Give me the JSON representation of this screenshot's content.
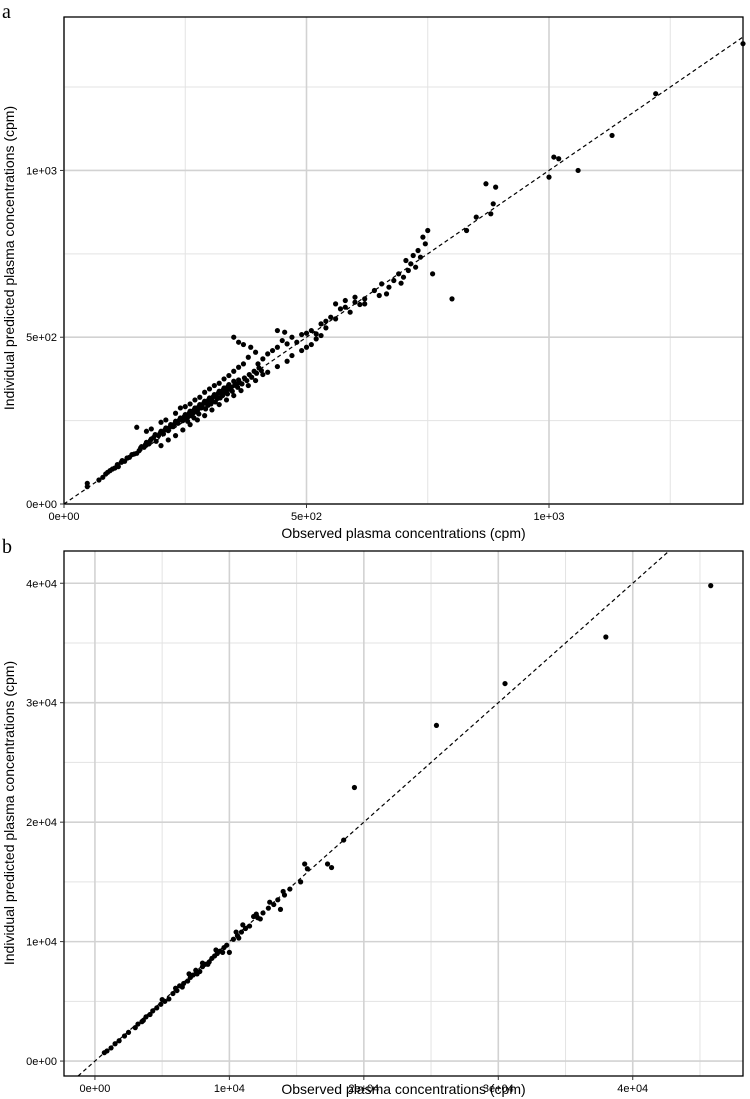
{
  "chart_data": [
    {
      "panel": "a",
      "type": "scatter",
      "title": "",
      "xlabel": "Observed plasma concentrations (cpm)",
      "ylabel": "Individual predicted plasma concentrations (cpm)",
      "xlim": [
        0,
        1400
      ],
      "ylim": [
        0,
        1460
      ],
      "xticks": [
        {
          "value": 0,
          "label": "0e+00"
        },
        {
          "value": 500,
          "label": "5e+02"
        },
        {
          "value": 1000,
          "label": "1e+03"
        }
      ],
      "yticks": [
        {
          "value": 0,
          "label": "0e+00"
        },
        {
          "value": 500,
          "label": "5e+02"
        },
        {
          "value": 1000,
          "label": "1e+03"
        }
      ],
      "minor_x": [
        250,
        750,
        1250
      ],
      "minor_y": [
        250,
        750,
        1250
      ],
      "grid": true,
      "identity_line": true,
      "points": [
        [
          48,
          52
        ],
        [
          48,
          62
        ],
        [
          72,
          72
        ],
        [
          80,
          80
        ],
        [
          86,
          90
        ],
        [
          90,
          95
        ],
        [
          95,
          100
        ],
        [
          100,
          105
        ],
        [
          105,
          108
        ],
        [
          110,
          118
        ],
        [
          112,
          112
        ],
        [
          118,
          125
        ],
        [
          120,
          130
        ],
        [
          125,
          128
        ],
        [
          130,
          138
        ],
        [
          135,
          140
        ],
        [
          140,
          148
        ],
        [
          145,
          150
        ],
        [
          150,
          152
        ],
        [
          155,
          160
        ],
        [
          158,
          168
        ],
        [
          160,
          172
        ],
        [
          165,
          170
        ],
        [
          168,
          178
        ],
        [
          170,
          185
        ],
        [
          175,
          180
        ],
        [
          178,
          190
        ],
        [
          180,
          195
        ],
        [
          185,
          200
        ],
        [
          188,
          208
        ],
        [
          190,
          188
        ],
        [
          195,
          205
        ],
        [
          198,
          212
        ],
        [
          200,
          218
        ],
        [
          205,
          210
        ],
        [
          208,
          222
        ],
        [
          210,
          228
        ],
        [
          215,
          220
        ],
        [
          218,
          230
        ],
        [
          220,
          238
        ],
        [
          225,
          232
        ],
        [
          228,
          240
        ],
        [
          230,
          248
        ],
        [
          235,
          242
        ],
        [
          238,
          252
        ],
        [
          240,
          258
        ],
        [
          245,
          250
        ],
        [
          248,
          262
        ],
        [
          250,
          268
        ],
        [
          255,
          260
        ],
        [
          258,
          272
        ],
        [
          260,
          278
        ],
        [
          265,
          270
        ],
        [
          268,
          282
        ],
        [
          270,
          288
        ],
        [
          275,
          280
        ],
        [
          278,
          292
        ],
        [
          280,
          298
        ],
        [
          285,
          290
        ],
        [
          288,
          302
        ],
        [
          290,
          308
        ],
        [
          295,
          300
        ],
        [
          298,
          312
        ],
        [
          300,
          318
        ],
        [
          305,
          310
        ],
        [
          308,
          322
        ],
        [
          310,
          328
        ],
        [
          315,
          320
        ],
        [
          318,
          332
        ],
        [
          320,
          338
        ],
        [
          325,
          330
        ],
        [
          328,
          342
        ],
        [
          330,
          348
        ],
        [
          335,
          340
        ],
        [
          338,
          352
        ],
        [
          340,
          358
        ],
        [
          345,
          350
        ],
        [
          350,
          368
        ],
        [
          355,
          360
        ],
        [
          360,
          372
        ],
        [
          150,
          230
        ],
        [
          170,
          218
        ],
        [
          180,
          225
        ],
        [
          200,
          245
        ],
        [
          210,
          252
        ],
        [
          230,
          272
        ],
        [
          240,
          288
        ],
        [
          250,
          292
        ],
        [
          260,
          300
        ],
        [
          270,
          312
        ],
        [
          280,
          320
        ],
        [
          290,
          335
        ],
        [
          300,
          345
        ],
        [
          310,
          355
        ],
        [
          320,
          362
        ],
        [
          330,
          375
        ],
        [
          340,
          385
        ],
        [
          350,
          398
        ],
        [
          360,
          410
        ],
        [
          370,
          420
        ],
        [
          200,
          175
        ],
        [
          215,
          192
        ],
        [
          230,
          205
        ],
        [
          245,
          222
        ],
        [
          260,
          238
        ],
        [
          275,
          252
        ],
        [
          290,
          265
        ],
        [
          305,
          282
        ],
        [
          320,
          298
        ],
        [
          335,
          312
        ],
        [
          350,
          325
        ],
        [
          365,
          340
        ],
        [
          380,
          355
        ],
        [
          395,
          370
        ],
        [
          410,
          388
        ],
        [
          380,
          440
        ],
        [
          395,
          455
        ],
        [
          400,
          420
        ],
        [
          410,
          435
        ],
        [
          420,
          450
        ],
        [
          430,
          460
        ],
        [
          440,
          470
        ],
        [
          450,
          490
        ],
        [
          460,
          480
        ],
        [
          470,
          500
        ],
        [
          480,
          485
        ],
        [
          490,
          508
        ],
        [
          500,
          512
        ],
        [
          510,
          520
        ],
        [
          520,
          510
        ],
        [
          530,
          540
        ],
        [
          540,
          548
        ],
        [
          550,
          560
        ],
        [
          560,
          555
        ],
        [
          570,
          585
        ],
        [
          580,
          590
        ],
        [
          590,
          575
        ],
        [
          600,
          605
        ],
        [
          610,
          598
        ],
        [
          620,
          615
        ],
        [
          420,
          395
        ],
        [
          440,
          412
        ],
        [
          460,
          428
        ],
        [
          470,
          445
        ],
        [
          490,
          460
        ],
        [
          500,
          470
        ],
        [
          510,
          478
        ],
        [
          520,
          495
        ],
        [
          530,
          505
        ],
        [
          540,
          528
        ],
        [
          350,
          500
        ],
        [
          360,
          485
        ],
        [
          370,
          478
        ],
        [
          385,
          470
        ],
        [
          440,
          520
        ],
        [
          455,
          515
        ],
        [
          560,
          600
        ],
        [
          580,
          610
        ],
        [
          600,
          620
        ],
        [
          620,
          600
        ],
        [
          640,
          640
        ],
        [
          650,
          625
        ],
        [
          655,
          660
        ],
        [
          665,
          630
        ],
        [
          670,
          650
        ],
        [
          680,
          670
        ],
        [
          690,
          690
        ],
        [
          695,
          662
        ],
        [
          700,
          680
        ],
        [
          705,
          730
        ],
        [
          710,
          700
        ],
        [
          715,
          720
        ],
        [
          720,
          745
        ],
        [
          725,
          710
        ],
        [
          730,
          760
        ],
        [
          735,
          740
        ],
        [
          740,
          800
        ],
        [
          745,
          780
        ],
        [
          750,
          820
        ],
        [
          760,
          690
        ],
        [
          800,
          615
        ],
        [
          830,
          820
        ],
        [
          850,
          860
        ],
        [
          870,
          960
        ],
        [
          880,
          870
        ],
        [
          885,
          900
        ],
        [
          890,
          950
        ],
        [
          1000,
          980
        ],
        [
          1010,
          1040
        ],
        [
          1020,
          1035
        ],
        [
          1060,
          1000
        ],
        [
          1130,
          1105
        ],
        [
          1220,
          1230
        ],
        [
          1400,
          1380
        ],
        [
          250,
          255
        ],
        [
          255,
          248
        ],
        [
          262,
          265
        ],
        [
          268,
          258
        ],
        [
          272,
          276
        ],
        [
          278,
          270
        ],
        [
          283,
          288
        ],
        [
          292,
          285
        ],
        [
          297,
          296
        ],
        [
          303,
          300
        ],
        [
          312,
          306
        ],
        [
          316,
          316
        ],
        [
          322,
          318
        ],
        [
          327,
          325
        ],
        [
          332,
          336
        ],
        [
          337,
          330
        ],
        [
          342,
          344
        ],
        [
          347,
          338
        ],
        [
          352,
          356
        ],
        [
          358,
          350
        ],
        [
          362,
          364
        ],
        [
          367,
          360
        ],
        [
          372,
          378
        ],
        [
          377,
          370
        ],
        [
          382,
          388
        ],
        [
          387,
          380
        ],
        [
          392,
          398
        ],
        [
          397,
          392
        ],
        [
          402,
          408
        ],
        [
          407,
          400
        ]
      ]
    },
    {
      "panel": "b",
      "type": "scatter",
      "title": "",
      "xlabel": "Observed plasma concentrations (cpm)",
      "ylabel": "Individual predicted plasma concentrations (cpm)",
      "xlim": [
        -2300,
        48200
      ],
      "ylim": [
        -1250,
        42700
      ],
      "xticks": [
        {
          "value": 0,
          "label": "0e+00"
        },
        {
          "value": 10000,
          "label": "1e+04"
        },
        {
          "value": 20000,
          "label": "2e+04"
        },
        {
          "value": 30000,
          "label": "3e+04"
        },
        {
          "value": 40000,
          "label": "4e+04"
        }
      ],
      "yticks": [
        {
          "value": 0,
          "label": "0e+00"
        },
        {
          "value": 10000,
          "label": "1e+04"
        },
        {
          "value": 20000,
          "label": "2e+04"
        },
        {
          "value": 30000,
          "label": "3e+04"
        },
        {
          "value": 40000,
          "label": "4e+04"
        }
      ],
      "minor_x": [
        5000,
        15000,
        25000,
        35000,
        45000
      ],
      "minor_y": [
        5000,
        15000,
        25000,
        35000
      ],
      "grid": true,
      "identity_line": true,
      "points": [
        [
          700,
          700
        ],
        [
          900,
          850
        ],
        [
          1200,
          1100
        ],
        [
          1500,
          1450
        ],
        [
          1800,
          1700
        ],
        [
          2200,
          2100
        ],
        [
          3000,
          2800
        ],
        [
          3200,
          3100
        ],
        [
          3500,
          3300
        ],
        [
          3800,
          3700
        ],
        [
          4100,
          3900
        ],
        [
          4300,
          4200
        ],
        [
          4600,
          4450
        ],
        [
          4900,
          4750
        ],
        [
          5200,
          5000
        ],
        [
          5500,
          5200
        ],
        [
          5800,
          5650
        ],
        [
          6100,
          5900
        ],
        [
          6300,
          6300
        ],
        [
          6600,
          6500
        ],
        [
          6900,
          6700
        ],
        [
          7100,
          7000
        ],
        [
          7300,
          7200
        ],
        [
          7500,
          7600
        ],
        [
          7800,
          7500
        ],
        [
          8000,
          7900
        ],
        [
          8200,
          8100
        ],
        [
          8500,
          8300
        ],
        [
          8700,
          8600
        ],
        [
          8900,
          8800
        ],
        [
          9100,
          9000
        ],
        [
          9300,
          9200
        ],
        [
          9600,
          9500
        ],
        [
          9800,
          9700
        ],
        [
          10000,
          9100
        ],
        [
          10300,
          10200
        ],
        [
          10600,
          10500
        ],
        [
          10900,
          10800
        ],
        [
          11200,
          11100
        ],
        [
          11500,
          11300
        ],
        [
          11800,
          12100
        ],
        [
          12100,
          12000
        ],
        [
          12500,
          12400
        ],
        [
          12900,
          12800
        ],
        [
          13300,
          13100
        ],
        [
          13600,
          13500
        ],
        [
          13800,
          12700
        ],
        [
          14100,
          13900
        ],
        [
          14500,
          14400
        ],
        [
          15300,
          15000
        ],
        [
          15600,
          16500
        ],
        [
          15800,
          16100
        ],
        [
          17300,
          16500
        ],
        [
          17600,
          16200
        ],
        [
          18500,
          18500
        ],
        [
          19300,
          22900
        ],
        [
          25400,
          28100
        ],
        [
          30500,
          31600
        ],
        [
          38000,
          35500
        ],
        [
          45800,
          39800
        ],
        [
          5000,
          5150
        ],
        [
          6000,
          6100
        ],
        [
          7000,
          7300
        ],
        [
          8000,
          8200
        ],
        [
          9000,
          9300
        ],
        [
          10500,
          10800
        ],
        [
          11000,
          11400
        ],
        [
          12000,
          12300
        ],
        [
          13000,
          13300
        ],
        [
          14000,
          14200
        ],
        [
          3600,
          3400
        ],
        [
          2500,
          2400
        ],
        [
          6500,
          6200
        ],
        [
          7600,
          7300
        ],
        [
          8400,
          8100
        ],
        [
          9500,
          9100
        ],
        [
          10700,
          10300
        ],
        [
          12300,
          11900
        ]
      ]
    }
  ]
}
